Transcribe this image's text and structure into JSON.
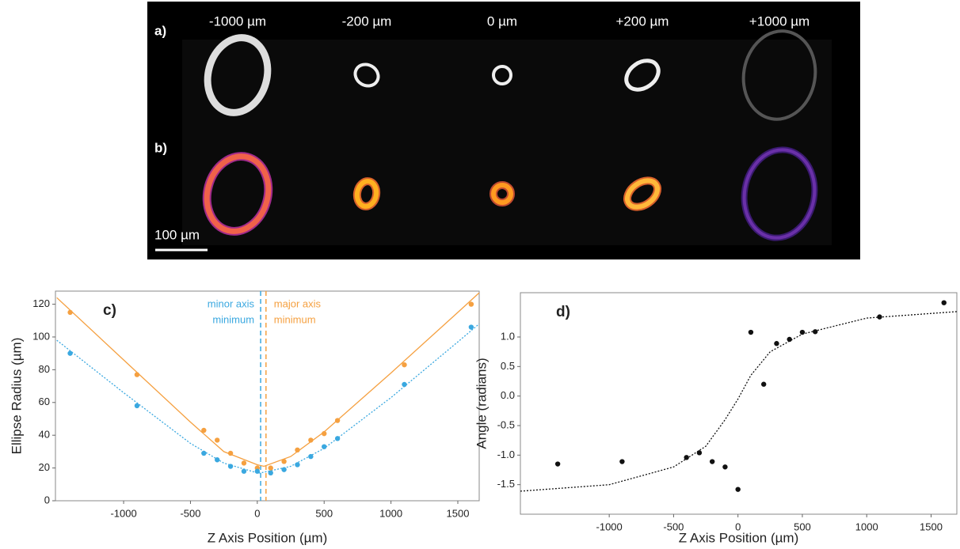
{
  "image_panel": {
    "row_labels": [
      "a)",
      "b)"
    ],
    "column_labels": [
      "-1000 µm",
      "-200 µm",
      "0 µm",
      "+200 µm",
      "+1000 µm"
    ],
    "scale_bar": "100 µm"
  },
  "chart_data": [
    {
      "type": "scatter",
      "panel_label": "c)",
      "x_label": "Z Axis Position (µm)",
      "y_label": "Ellipse Radius (µm)",
      "xlim": [
        -1510,
        1660
      ],
      "ylim": [
        0,
        128
      ],
      "xticks": [
        -1000,
        -500,
        0,
        500,
        1000,
        1500
      ],
      "yticks": [
        0,
        20,
        40,
        60,
        80,
        100,
        120
      ],
      "series": [
        {
          "color": "#f5a040",
          "marker": false,
          "line_style": "solid",
          "x": [
            -1500,
            -1000,
            -500,
            -250,
            0,
            50,
            250,
            500,
            1000,
            1500,
            1660
          ],
          "values": [
            124,
            86,
            48,
            30,
            22,
            21,
            27,
            42,
            78,
            115,
            127
          ]
        },
        {
          "color": "#3aa8e0",
          "marker": false,
          "line_style": "dotted",
          "x": [
            -1500,
            -1000,
            -500,
            -250,
            0,
            25,
            250,
            500,
            1000,
            1500,
            1660
          ],
          "values": [
            98,
            66,
            35,
            23,
            17,
            17,
            21,
            32,
            63,
            97,
            108
          ]
        },
        {
          "color": "#f5a040",
          "marker": true,
          "line_style": "none",
          "x": [
            -1400,
            -900,
            -400,
            -300,
            -200,
            -100,
            0,
            100,
            200,
            300,
            400,
            500,
            600,
            1100,
            1600
          ],
          "values": [
            115,
            77,
            43,
            37,
            29,
            23,
            20,
            20,
            24,
            31,
            37,
            41,
            49,
            83,
            120
          ]
        },
        {
          "color": "#3aa8e0",
          "marker": true,
          "line_style": "none",
          "x": [
            -1400,
            -900,
            -400,
            -300,
            -200,
            -100,
            0,
            100,
            200,
            300,
            400,
            500,
            600,
            1100,
            1600
          ],
          "values": [
            90,
            58,
            29,
            25,
            21,
            18,
            18,
            17,
            19,
            22,
            27,
            33,
            38,
            71,
            106
          ]
        }
      ],
      "vlines": [
        {
          "value": 25,
          "color": "#3aa8e0",
          "label_lines": [
            "minor axis",
            "minimum"
          ]
        },
        {
          "value": 65,
          "color": "#f5a040",
          "label_lines": [
            "major axis",
            "minimum"
          ]
        }
      ]
    },
    {
      "type": "scatter",
      "panel_label": "d)",
      "x_label": "Z Axis Position (µm)",
      "y_label": "Angle (radians)",
      "xlim": [
        -1690,
        1700
      ],
      "ylim": [
        -2.0,
        1.75
      ],
      "xticks": [
        -1000,
        -500,
        0,
        500,
        1000,
        1500
      ],
      "yticks": [
        {
          "value": 1,
          "label": "1.0"
        },
        0.5,
        {
          "value": 0,
          "label": "0.0"
        },
        -0.5,
        {
          "value": -1,
          "label": "-1.0"
        },
        -1.5
      ],
      "series": [
        {
          "color": "#111111",
          "marker": false,
          "line_style": "dotted",
          "x": [
            -1690,
            -1000,
            -500,
            -250,
            -100,
            0,
            100,
            250,
            500,
            1000,
            1700
          ],
          "values": [
            -1.61,
            -1.5,
            -1.2,
            -0.85,
            -0.4,
            -0.05,
            0.35,
            0.75,
            1.05,
            1.32,
            1.43
          ]
        },
        {
          "color": "#111111",
          "marker": true,
          "line_style": "none",
          "x": [
            -1400,
            -900,
            -400,
            -300,
            -200,
            -100,
            0,
            100,
            200,
            300,
            400,
            500,
            600,
            1100,
            1600
          ],
          "values": [
            -1.15,
            -1.11,
            -1.04,
            -0.96,
            -1.11,
            -1.2,
            -1.58,
            1.08,
            0.2,
            0.89,
            0.96,
            1.08,
            1.09,
            1.34,
            1.58
          ]
        }
      ],
      "vlines": []
    }
  ]
}
